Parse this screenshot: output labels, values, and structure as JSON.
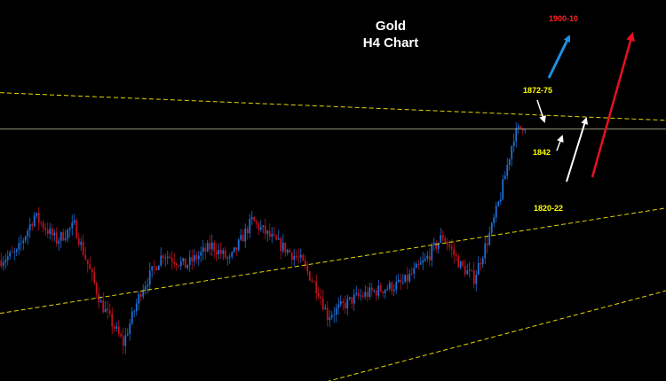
{
  "header": {
    "title_line1": "Gold",
    "title_line2": "H4 Chart"
  },
  "labels": {
    "target": "1900-10",
    "resistance": "1872-75",
    "pivot": "1842",
    "support": "1820-22"
  },
  "colors": {
    "background": "#000000",
    "up_candle": "#1f6fd6",
    "down_candle": "#c0121e",
    "trendline": "#e6d600",
    "horizontal": "#a8a890",
    "label": "#ffff00",
    "target_label": "#ff2020",
    "arrow_blue": "#1e90e0",
    "arrow_white": "#ffffff",
    "arrow_red": "#e81020"
  },
  "chart_data": {
    "type": "candlestick",
    "title": "Gold H4 Chart",
    "ylim": [
      1764,
      1916
    ],
    "horizontal_level": 1864.5,
    "trendlines": [
      {
        "style": "dashed",
        "from": [
          0,
          1879
        ],
        "to": [
          300,
          1868
        ]
      },
      {
        "style": "dashed",
        "from": [
          0,
          1791
        ],
        "to": [
          300,
          1833
        ]
      },
      {
        "style": "dashed",
        "from": [
          144,
          1763
        ],
        "to": [
          300,
          1800
        ]
      }
    ],
    "price_path": [
      [
        0,
        1812
      ],
      [
        8,
        1815
      ],
      [
        16,
        1830
      ],
      [
        26,
        1820
      ],
      [
        34,
        1826
      ],
      [
        46,
        1795
      ],
      [
        56,
        1779
      ],
      [
        64,
        1800
      ],
      [
        74,
        1815
      ],
      [
        84,
        1810
      ],
      [
        96,
        1818
      ],
      [
        104,
        1812
      ],
      [
        114,
        1828
      ],
      [
        124,
        1820
      ],
      [
        136,
        1812
      ],
      [
        144,
        1800
      ],
      [
        148,
        1790
      ],
      [
        160,
        1797
      ],
      [
        170,
        1800
      ],
      [
        182,
        1803
      ],
      [
        192,
        1812
      ],
      [
        200,
        1822
      ],
      [
        208,
        1810
      ],
      [
        214,
        1805
      ],
      [
        222,
        1825
      ],
      [
        226,
        1838
      ],
      [
        232,
        1862
      ],
      [
        236,
        1866
      ]
    ]
  }
}
